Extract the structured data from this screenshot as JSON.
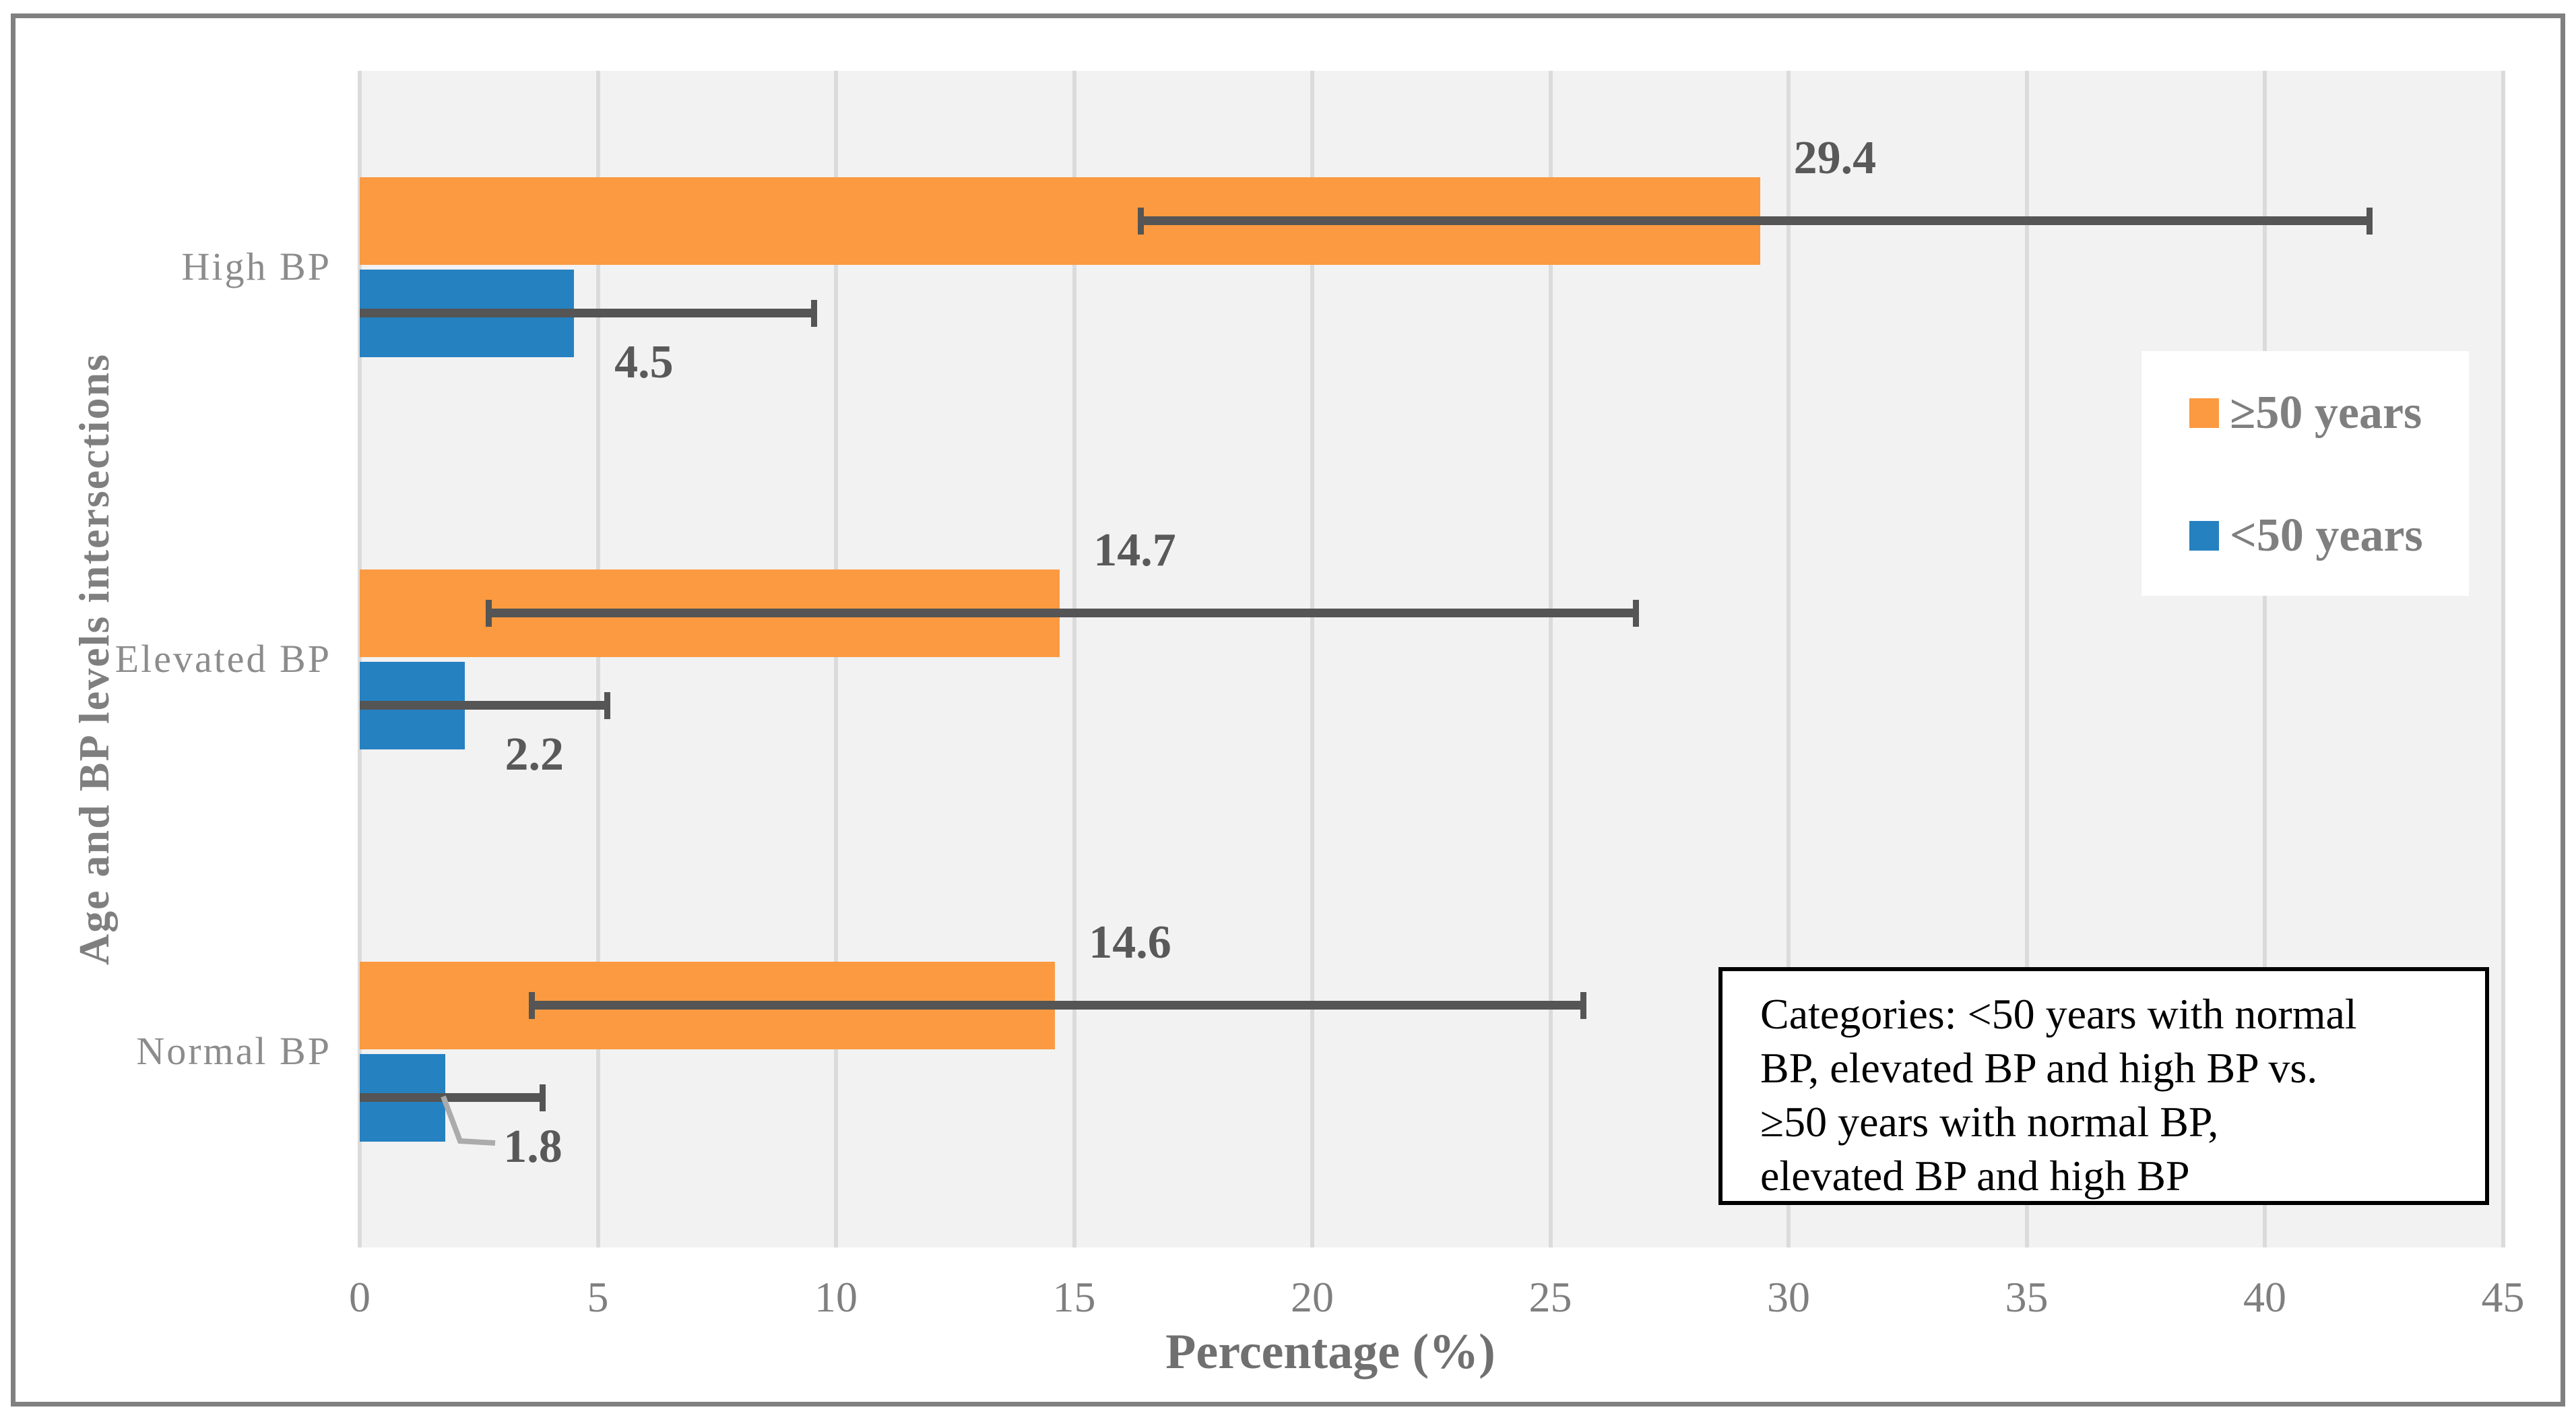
{
  "chart_data": {
    "type": "bar",
    "orientation": "horizontal",
    "xlabel": "Percentage (%)",
    "ylabel": "Age and BP levels intersections",
    "categories": [
      "High BP",
      "Elevated BP",
      "Normal BP"
    ],
    "xlim": [
      0,
      45
    ],
    "x_ticks": [
      "0",
      "5",
      "10",
      "15",
      "20",
      "25",
      "30",
      "35",
      "40",
      "45"
    ],
    "grid": "vertical",
    "plot_background": "#F2F2F2",
    "gridline_color": "#DBDBDB",
    "error_bar_color": "#555555",
    "series": [
      {
        "name": "≥50 years",
        "color": "#FB9A40",
        "values": [
          29.4,
          14.7,
          14.6
        ],
        "labels": [
          "29.4",
          "14.7",
          "14.6"
        ],
        "error_ranges": [
          [
            16.4,
            42.2
          ],
          [
            2.7,
            26.8
          ],
          [
            3.6,
            25.7
          ]
        ],
        "label_placement": "above"
      },
      {
        "name": "<50 years",
        "color": "#2681C1",
        "values": [
          4.5,
          2.2,
          1.8
        ],
        "labels": [
          "4.5",
          "2.2",
          "1.8"
        ],
        "error_ranges": [
          [
            0,
            9.55
          ],
          [
            0,
            5.2
          ],
          [
            0,
            3.85
          ]
        ],
        "label_placement": "below"
      }
    ],
    "legend_position": "inside-right",
    "annotation_box": {
      "lines": [
        "Categories: <50 years with normal",
        "BP, elevated BP and high BP vs.",
        "≥50 years with normal BP,",
        "elevated BP and high BP"
      ]
    }
  },
  "legend": {
    "items": [
      {
        "label": "≥50 years",
        "color": "#FB9A40"
      },
      {
        "label": "<50 years",
        "color": "#2681C1"
      }
    ]
  },
  "axes": {
    "x_title": "Percentage (%)",
    "y_title": "Age and BP levels intersections"
  },
  "colors": {
    "value_label": "#595959",
    "tick_label": "#7F7F7F",
    "category_label": "#8C8C8C",
    "frame_border": "#808080",
    "leader_line": "#ABABAB"
  }
}
